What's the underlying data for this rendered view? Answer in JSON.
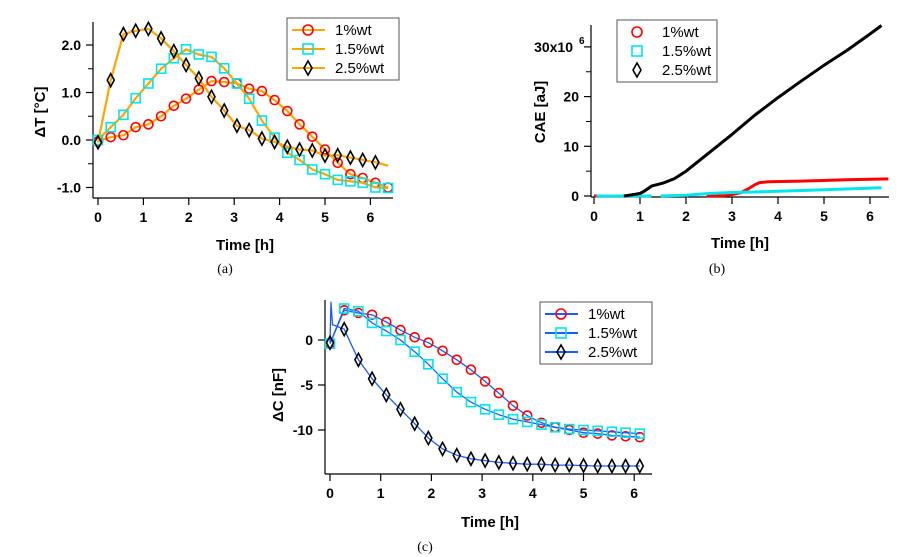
{
  "chart_data": [
    {
      "id": "a",
      "type": "line",
      "caption": "(a)",
      "xlabel": "Time [h]",
      "ylabel": "ΔT [°C]",
      "xlim": [
        -0.1,
        6.5
      ],
      "ylim": [
        -1.2,
        2.45
      ],
      "xticks": [
        0,
        1,
        2,
        3,
        4,
        5,
        6
      ],
      "xtick_labels": [
        "0",
        "1",
        "2",
        "3",
        "4",
        "5",
        "6"
      ],
      "yticks": [
        -1.0,
        0.0,
        1.0,
        2.0
      ],
      "ytick_labels": [
        "-1.0",
        "0.0",
        "1.0",
        "2.0"
      ],
      "yminor": [
        -0.5,
        0.5,
        1.5
      ],
      "legend": {
        "position": "top-right",
        "line_color": "#ffa500"
      },
      "line_color": "#ffa500",
      "series": [
        {
          "name": "1%wt",
          "marker": "circle",
          "color": "#ff0000",
          "x": [
            0,
            0.28,
            0.56,
            0.83,
            1.11,
            1.39,
            1.67,
            1.94,
            2.22,
            2.5,
            2.78,
            3.06,
            3.33,
            3.61,
            3.89,
            4.17,
            4.44,
            4.72,
            5.0,
            5.28,
            5.56,
            5.83,
            6.11,
            6.39
          ],
          "y": [
            -0.03,
            0.06,
            0.1,
            0.27,
            0.33,
            0.5,
            0.72,
            0.87,
            1.06,
            1.24,
            1.22,
            1.19,
            1.08,
            1.03,
            0.84,
            0.61,
            0.33,
            0.07,
            -0.2,
            -0.48,
            -0.72,
            -0.8,
            -0.9,
            -1.0
          ]
        },
        {
          "name": "1.5%wt",
          "marker": "square",
          "color": "#00e5ee",
          "x": [
            0,
            0.28,
            0.56,
            0.83,
            1.11,
            1.39,
            1.67,
            1.94,
            2.22,
            2.5,
            2.78,
            3.06,
            3.33,
            3.61,
            3.89,
            4.17,
            4.44,
            4.72,
            5.0,
            5.28,
            5.56,
            5.83,
            6.11,
            6.39
          ],
          "y": [
            0.0,
            0.27,
            0.53,
            0.88,
            1.19,
            1.5,
            1.72,
            1.91,
            1.8,
            1.75,
            1.51,
            1.19,
            0.87,
            0.41,
            0.05,
            -0.27,
            -0.42,
            -0.62,
            -0.72,
            -0.84,
            -0.87,
            -0.9,
            -1.0,
            -1.01
          ]
        },
        {
          "name": "2.5%wt",
          "marker": "diamond",
          "color": "#000000",
          "x": [
            0,
            0.28,
            0.56,
            0.83,
            1.11,
            1.39,
            1.67,
            1.94,
            2.22,
            2.5,
            2.78,
            3.06,
            3.33,
            3.61,
            3.89,
            4.17,
            4.44,
            4.72,
            5.0,
            5.28,
            5.56,
            5.83,
            6.11
          ],
          "y": [
            -0.05,
            1.26,
            2.23,
            2.3,
            2.34,
            2.14,
            1.87,
            1.58,
            1.3,
            0.91,
            0.62,
            0.3,
            0.21,
            0.03,
            -0.04,
            -0.14,
            -0.2,
            -0.22,
            -0.33,
            -0.32,
            -0.37,
            -0.42,
            -0.47
          ],
          "trail_end": {
            "x": 6.39,
            "y": -0.54
          }
        }
      ]
    },
    {
      "id": "b",
      "type": "line",
      "caption": "(b)",
      "xlabel": "Time [h]",
      "ylabel": "CAE [aJ]",
      "y_multiplier_label": "x10",
      "y_multiplier_exp": "6",
      "xlim": [
        -0.1,
        6.4
      ],
      "ylim": [
        -0.5,
        35
      ],
      "xticks": [
        0,
        1,
        2,
        3,
        4,
        5,
        6
      ],
      "xtick_labels": [
        "0",
        "1",
        "2",
        "3",
        "4",
        "5",
        "6"
      ],
      "yticks": [
        0,
        10,
        20,
        30
      ],
      "ytick_labels": [
        "0",
        "10",
        "20",
        "30x10"
      ],
      "yminor": [
        5,
        15,
        25
      ],
      "legend": {
        "position": "top-left"
      },
      "series": [
        {
          "name": "1%wt",
          "marker": "circle",
          "color": "#ff0000",
          "x": [
            0,
            0.1,
            2.0,
            2.05,
            2.45,
            2.8,
            3.0,
            3.2,
            3.35,
            3.5,
            3.6,
            3.8,
            4.5,
            5.5,
            6.4
          ],
          "y": [
            0,
            0,
            0,
            0,
            0,
            0.05,
            0.3,
            0.7,
            1.4,
            2.3,
            2.7,
            2.85,
            3.0,
            3.25,
            3.45
          ],
          "segments": [
            [
              0,
              0.1
            ],
            [
              2.0,
              2.05
            ],
            [
              2.45,
              6.4
            ]
          ]
        },
        {
          "name": "1.5%wt",
          "marker": "square",
          "color": "#00e5ee",
          "x": [
            0.05,
            1.25,
            1.45,
            2.0,
            2.5,
            3.0,
            4.0,
            5.0,
            6.25
          ],
          "y": [
            0,
            0,
            0,
            0.15,
            0.5,
            0.7,
            0.95,
            1.25,
            1.65
          ],
          "segments": [
            [
              0.05,
              1.25
            ],
            [
              1.45,
              6.25
            ]
          ]
        },
        {
          "name": "2.5%wt",
          "marker": "diamond",
          "color": "#000000",
          "x": [
            0.65,
            0.8,
            1.0,
            1.1,
            1.25,
            1.5,
            1.75,
            2.0,
            2.5,
            3.0,
            3.5,
            4.0,
            4.5,
            5.0,
            5.5,
            6.0,
            6.25
          ],
          "y": [
            0,
            0.2,
            0.5,
            1.0,
            2.0,
            2.6,
            3.5,
            5.0,
            8.7,
            12.4,
            16.3,
            19.8,
            23.1,
            26.3,
            29.3,
            32.6,
            34.3
          ]
        }
      ]
    },
    {
      "id": "c",
      "type": "line",
      "caption": "(c)",
      "xlabel": "Time [h]",
      "ylabel": "ΔC [nF]",
      "xlim": [
        -0.1,
        6.15
      ],
      "ylim": [
        -14.8,
        4.5
      ],
      "xticks": [
        0,
        1,
        2,
        3,
        4,
        5,
        6
      ],
      "xtick_labels": [
        "0",
        "1",
        "2",
        "3",
        "4",
        "5",
        "6"
      ],
      "yticks": [
        -10,
        -5,
        0
      ],
      "ytick_labels": [
        "-10",
        "-5",
        "0"
      ],
      "legend": {
        "position": "top-right",
        "line_color": "#1a5cff"
      },
      "line_color": "#1a5cff",
      "series": [
        {
          "name": "1%wt",
          "marker": "circle",
          "color": "#ff0000",
          "x": [
            0,
            0.28,
            0.56,
            0.83,
            1.11,
            1.39,
            1.67,
            1.94,
            2.22,
            2.5,
            2.78,
            3.06,
            3.33,
            3.61,
            3.89,
            4.17,
            4.44,
            4.72,
            5.0,
            5.28,
            5.56,
            5.83,
            6.11
          ],
          "y": [
            -0.4,
            3.3,
            3.0,
            2.8,
            2.0,
            1.1,
            0.3,
            -0.3,
            -1.2,
            -2.2,
            -3.3,
            -4.6,
            -5.9,
            -7.3,
            -8.4,
            -9.2,
            -9.7,
            -10.0,
            -10.3,
            -10.4,
            -10.6,
            -10.7,
            -10.8
          ]
        },
        {
          "name": "1.5%wt",
          "marker": "square",
          "color": "#00e5ee",
          "x": [
            0,
            0.28,
            0.56,
            0.83,
            1.11,
            1.39,
            1.67,
            1.94,
            2.22,
            2.5,
            2.78,
            3.06,
            3.33,
            3.61,
            3.89,
            4.17,
            4.44,
            4.72,
            5.0,
            5.28,
            5.56,
            5.83,
            6.11
          ],
          "y": [
            -0.4,
            3.5,
            3.2,
            1.9,
            1.0,
            0.0,
            -1.3,
            -2.7,
            -4.3,
            -5.8,
            -6.9,
            -7.7,
            -8.3,
            -8.8,
            -9.1,
            -9.4,
            -9.7,
            -9.9,
            -10.0,
            -10.1,
            -10.2,
            -10.3,
            -10.4
          ]
        },
        {
          "name": "2.5%wt",
          "marker": "diamond",
          "color": "#000000",
          "x": [
            0,
            0.28,
            0.56,
            0.83,
            1.11,
            1.39,
            1.67,
            1.94,
            2.22,
            2.5,
            2.78,
            3.06,
            3.33,
            3.61,
            3.89,
            4.17,
            4.44,
            4.72,
            5.0,
            5.28,
            5.56,
            5.83,
            6.11
          ],
          "y": [
            -0.3,
            1.2,
            -2.2,
            -4.3,
            -6.1,
            -7.7,
            -9.3,
            -10.9,
            -12.1,
            -12.8,
            -13.2,
            -13.4,
            -13.6,
            -13.7,
            -13.8,
            -13.8,
            -13.9,
            -13.9,
            -13.95,
            -14.0,
            -14.0,
            -14.0,
            -14.0
          ],
          "spike": {
            "x": [
              0.02,
              0.05,
              0.1
            ],
            "y": [
              4.2,
              1.7,
              1.6
            ]
          }
        }
      ]
    }
  ]
}
